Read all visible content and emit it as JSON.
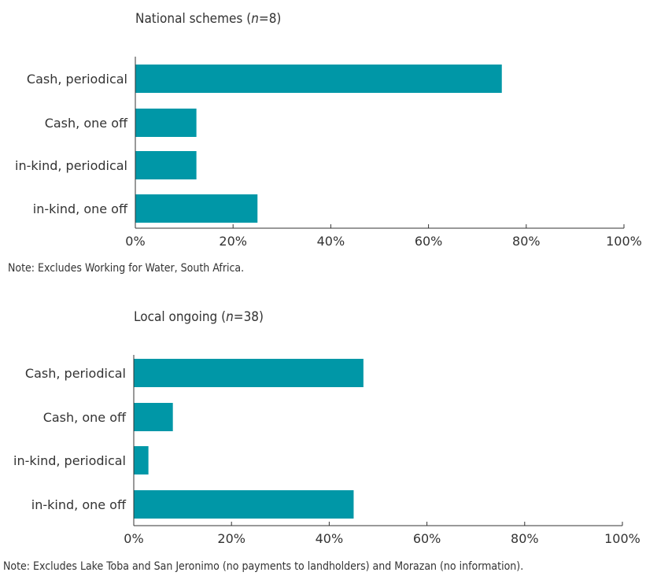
{
  "colors": {
    "bar": "#0097A7",
    "axis": "#333333"
  },
  "chart_data": [
    {
      "type": "bar",
      "orientation": "horizontal",
      "title_prefix": "National schemes (",
      "title_italic": "n",
      "title_suffix": "=8)",
      "categories": [
        "Cash, periodical",
        "Cash, one off",
        "in-kind, periodical",
        "in-kind, one off"
      ],
      "values": [
        75,
        12.5,
        12.5,
        25
      ],
      "xlim": [
        0,
        100
      ],
      "xticks": [
        "0%",
        "20%",
        "40%",
        "60%",
        "80%",
        "100%"
      ],
      "grid": false,
      "note": "Note: Excludes Working for Water, South Africa."
    },
    {
      "type": "bar",
      "orientation": "horizontal",
      "title_prefix": "Local ongoing (",
      "title_italic": "n",
      "title_suffix": "=38)",
      "categories": [
        "Cash, periodical",
        "Cash, one off",
        "in-kind, periodical",
        "in-kind, one off"
      ],
      "values": [
        47,
        8,
        3,
        45
      ],
      "xlim": [
        0,
        100
      ],
      "xticks": [
        "0%",
        "20%",
        "40%",
        "60%",
        "80%",
        "100%"
      ],
      "grid": false,
      "note": "Note: Excludes Lake Toba and San Jeronimo (no payments to landholders) and Morazan (no information)."
    }
  ]
}
